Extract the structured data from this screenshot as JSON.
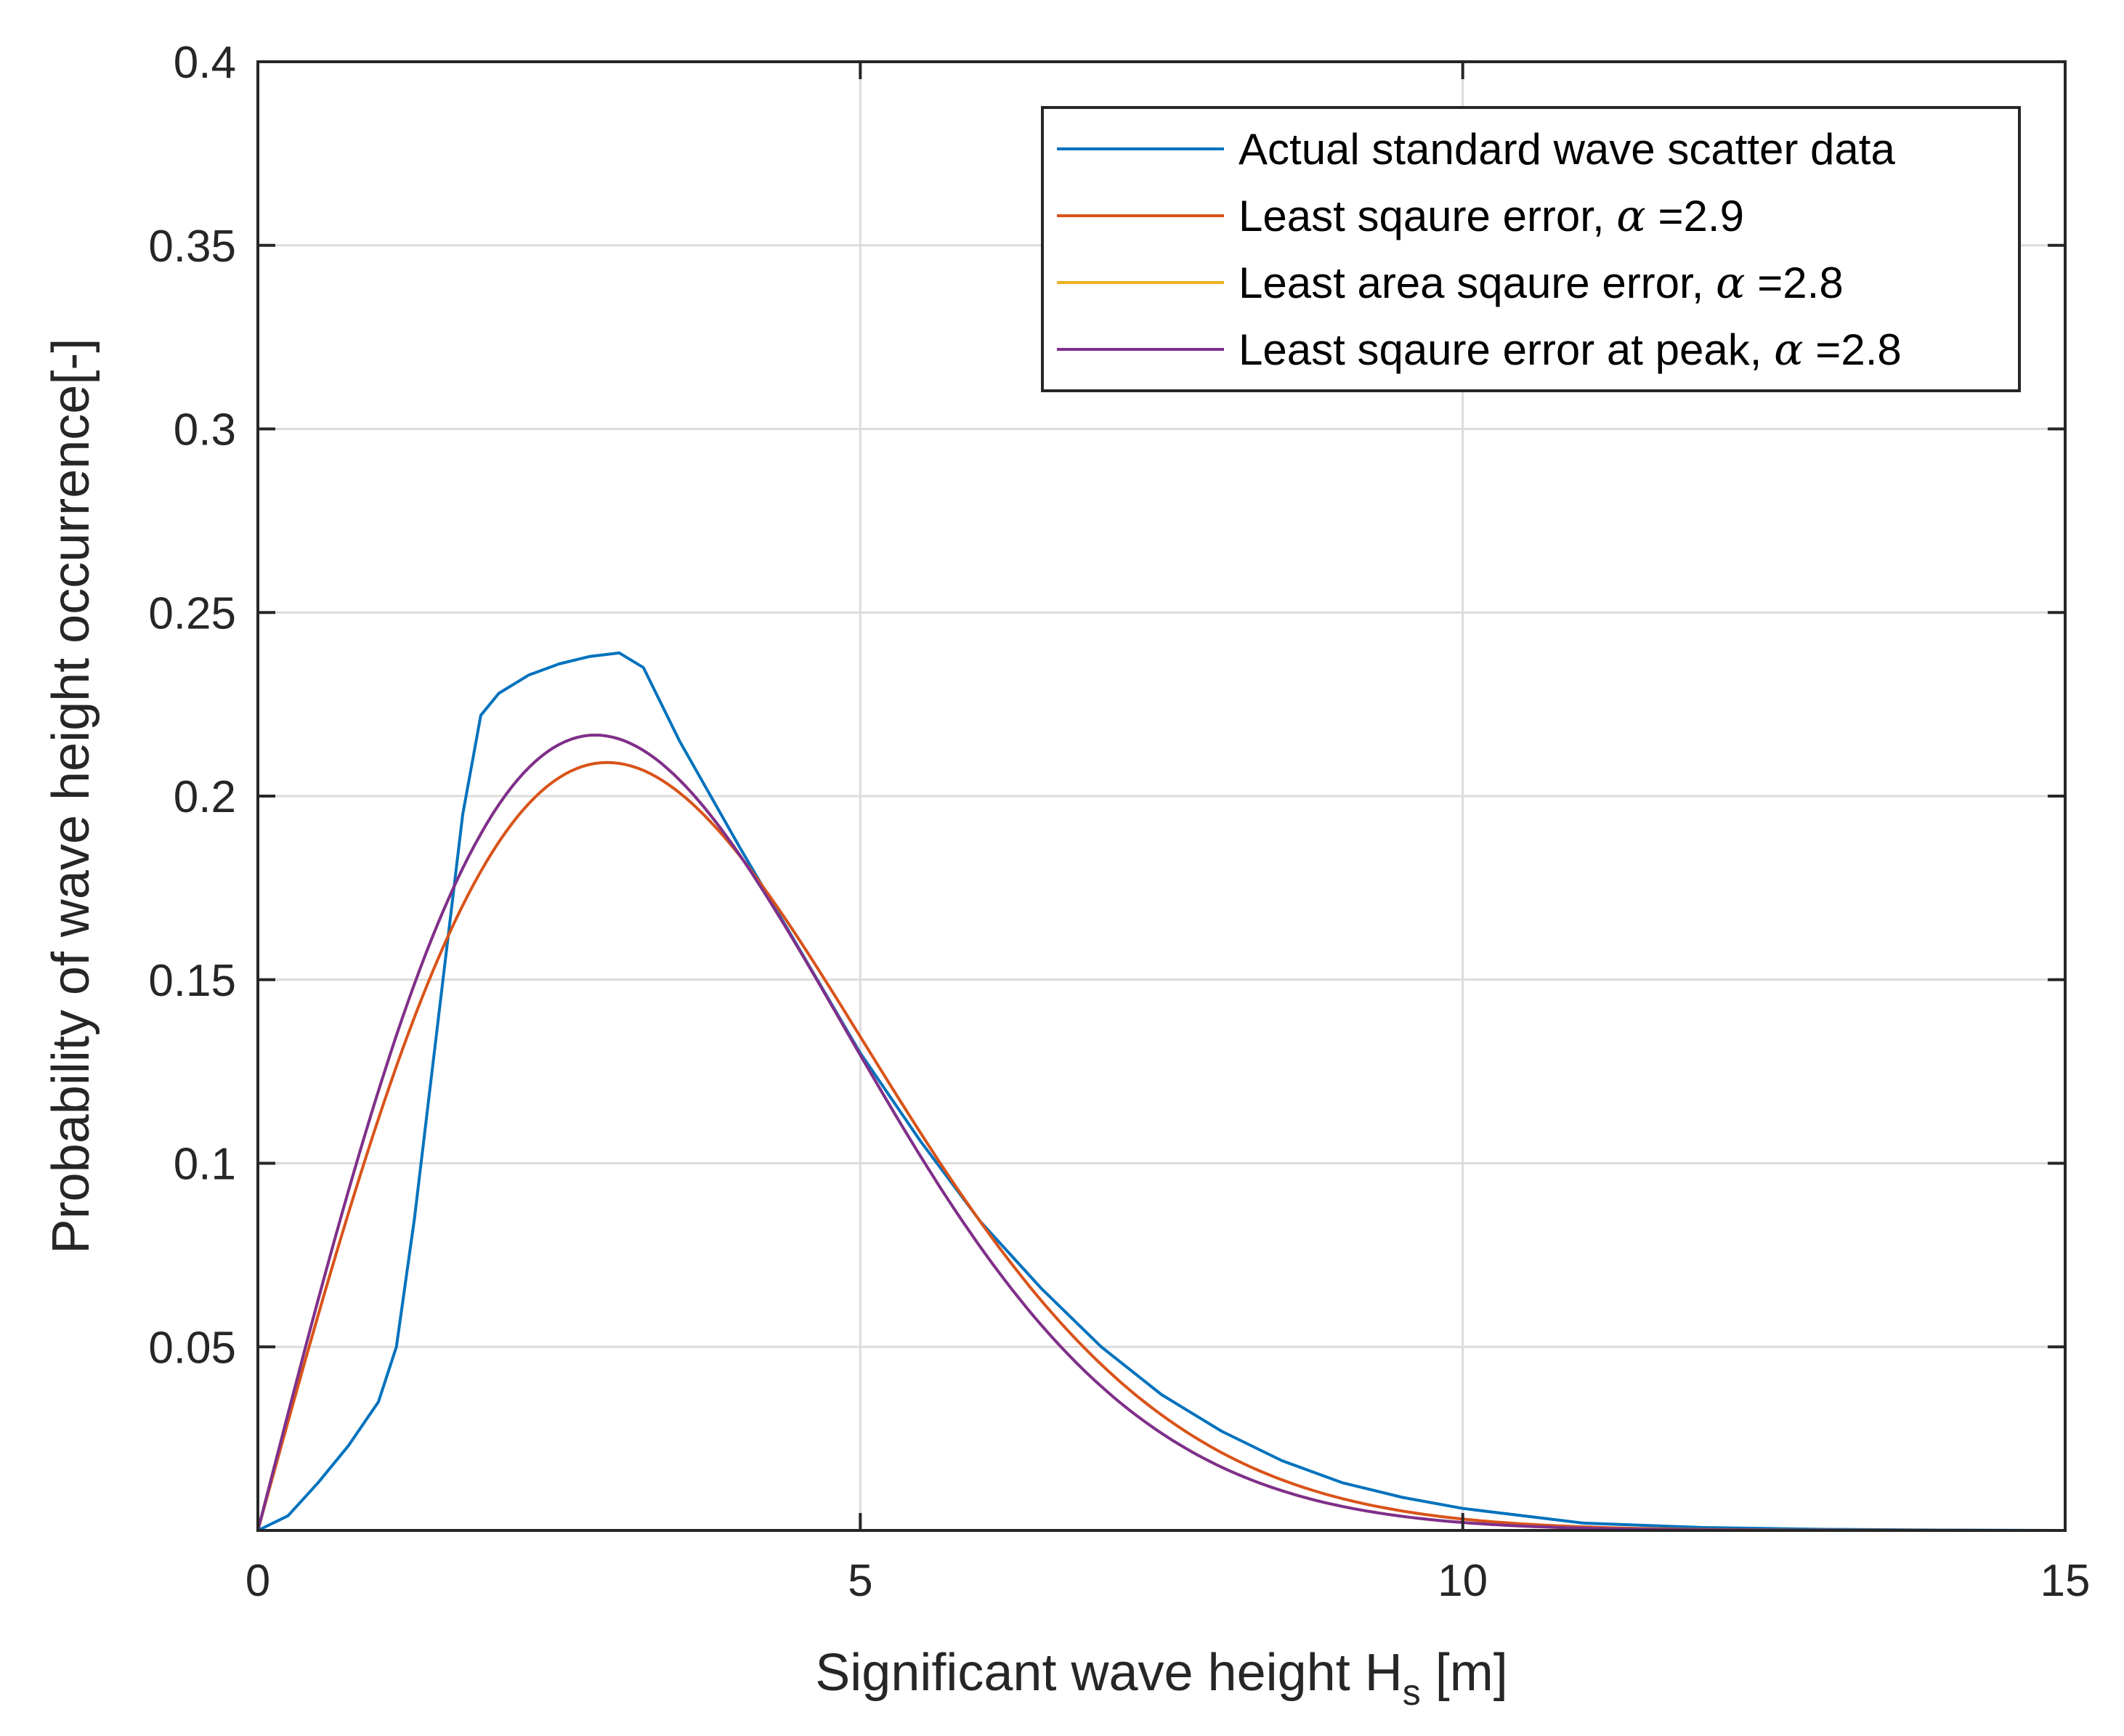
{
  "chart_data": {
    "type": "line",
    "title": "",
    "xlabel": "Significant wave height H",
    "xlabel_subscript": "s",
    "xlabel_unit": " [m]",
    "ylabel": "Probability of wave height occurrence[-]",
    "xlim": [
      0,
      15
    ],
    "ylim": [
      0,
      0.4
    ],
    "xticks": [
      0,
      5,
      10,
      15
    ],
    "xtick_labels": [
      "0",
      "5",
      "10",
      "15"
    ],
    "yticks": [
      0.05,
      0.1,
      0.15,
      0.2,
      0.25,
      0.3,
      0.35,
      0.4
    ],
    "ytick_labels": [
      "0.05",
      "0.1",
      "0.15",
      "0.2",
      "0.25",
      "0.3",
      "0.35",
      "0.4"
    ],
    "grid": true,
    "legend_position": "top-right",
    "series": [
      {
        "name": "Actual standard wave scatter data",
        "legend_prefix": "Actual standard wave scatter data",
        "legend_alpha": "",
        "legend_suffix": "",
        "color": "#0072BD",
        "x": [
          0,
          0.25,
          0.5,
          0.75,
          1.0,
          1.15,
          1.3,
          1.5,
          1.7,
          1.85,
          2.0,
          2.25,
          2.5,
          2.75,
          3.0,
          3.2,
          3.5,
          4.0,
          4.5,
          5.0,
          5.5,
          6.0,
          6.5,
          7.0,
          7.5,
          8.0,
          8.5,
          9.0,
          9.5,
          10.0,
          11.0,
          12.0,
          13.0,
          14.0,
          15.0
        ],
        "y": [
          0,
          0.004,
          0.013,
          0.023,
          0.035,
          0.05,
          0.085,
          0.14,
          0.195,
          0.222,
          0.228,
          0.233,
          0.236,
          0.238,
          0.239,
          0.235,
          0.215,
          0.186,
          0.158,
          0.13,
          0.106,
          0.084,
          0.066,
          0.05,
          0.037,
          0.027,
          0.019,
          0.013,
          0.009,
          0.006,
          0.002,
          0.0008,
          0.0003,
          0.0001,
          0
        ]
      },
      {
        "name": "Least sqaure error, α =2.9",
        "legend_prefix": "Least sqaure error, ",
        "legend_alpha": "α",
        "legend_suffix": " =2.9",
        "color": "#D95319",
        "alpha": 2.9,
        "x": [],
        "y": []
      },
      {
        "name": "Least area sqaure error, α =2.8",
        "legend_prefix": "Least area sqaure error, ",
        "legend_alpha": "α",
        "legend_suffix": " =2.8",
        "color": "#EDB120",
        "alpha": 2.8,
        "x": [],
        "y": []
      },
      {
        "name": "Least sqaure error at peak, α =2.8",
        "legend_prefix": "Least sqaure error at peak, ",
        "legend_alpha": "α",
        "legend_suffix": " =2.8",
        "color": "#7E2F8E",
        "alpha": 2.8,
        "x": [],
        "y": []
      }
    ]
  }
}
